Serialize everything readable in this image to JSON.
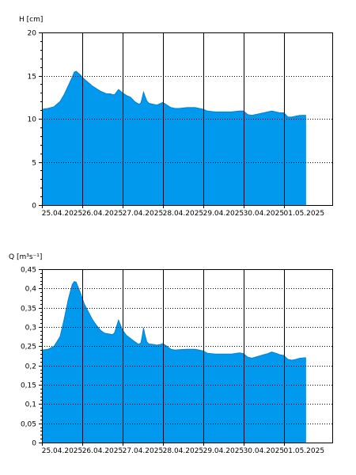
{
  "chart_data": [
    {
      "type": "area",
      "ylabel": "H [cm]",
      "ylim": [
        0,
        20
      ],
      "yticks": [
        0,
        5,
        10,
        15,
        20
      ],
      "ytick_labels": [
        "0",
        "5",
        "10",
        "15",
        "20"
      ],
      "xlim": [
        0,
        7.2
      ],
      "xticks": [
        0,
        1,
        2,
        3,
        4,
        5,
        6
      ],
      "xtick_labels": [
        "25.04.2025",
        "26.04.2025",
        "27.04.2025",
        "28.04.2025",
        "29.04.2025",
        "30.04.2025",
        "01.05.2025"
      ],
      "grid": true,
      "fill_color": "#0099ee",
      "series": [
        {
          "x": [
            0.0,
            0.15,
            0.3,
            0.45,
            0.55,
            0.65,
            0.75,
            0.8,
            0.85,
            0.95,
            1.05,
            1.15,
            1.25,
            1.35,
            1.45,
            1.55,
            1.6,
            1.7,
            1.75,
            1.8,
            1.9,
            2.0,
            2.1,
            2.2,
            2.3,
            2.4,
            2.45,
            2.48,
            2.52,
            2.55,
            2.6,
            2.65,
            2.75,
            2.85,
            2.95,
            3.0,
            3.1,
            3.2,
            3.3,
            3.4,
            3.6,
            3.8,
            3.9,
            4.0,
            4.1,
            4.3,
            4.5,
            4.7,
            4.9,
            5.0,
            5.1,
            5.2,
            5.4,
            5.5,
            5.6,
            5.7,
            5.8,
            5.9,
            6.0,
            6.1,
            6.2,
            6.3,
            6.4,
            6.5,
            6.55
          ],
          "y": [
            11.1,
            11.2,
            11.4,
            12.0,
            12.8,
            13.8,
            14.8,
            15.4,
            15.5,
            15.1,
            14.6,
            14.2,
            13.8,
            13.5,
            13.2,
            13.0,
            12.9,
            12.9,
            12.8,
            12.8,
            13.4,
            13.0,
            12.7,
            12.5,
            12.0,
            11.7,
            11.8,
            12.3,
            13.1,
            12.7,
            12.1,
            11.8,
            11.7,
            11.6,
            11.8,
            11.9,
            11.6,
            11.3,
            11.2,
            11.2,
            11.3,
            11.3,
            11.2,
            11.1,
            10.9,
            10.8,
            10.8,
            10.8,
            10.9,
            10.9,
            10.5,
            10.4,
            10.6,
            10.7,
            10.8,
            10.9,
            10.8,
            10.7,
            10.7,
            10.2,
            10.2,
            10.3,
            10.4,
            10.4,
            10.4
          ]
        }
      ]
    },
    {
      "type": "area",
      "ylabel": "Q [m³s⁻¹]",
      "ylim": [
        0,
        0.45
      ],
      "yticks": [
        0,
        0.05,
        0.1,
        0.15,
        0.2,
        0.25,
        0.3,
        0.35,
        0.4,
        0.45
      ],
      "ytick_labels": [
        "0",
        "0,05",
        "0,1",
        "0,15",
        "0,2",
        "0,25",
        "0,3",
        "0,35",
        "0,4",
        "0,45"
      ],
      "xlim": [
        0,
        7.2
      ],
      "xticks": [
        0,
        1,
        2,
        3,
        4,
        5,
        6
      ],
      "xtick_labels": [
        "25.04.2025",
        "26.04.2025",
        "27.04.2025",
        "28.04.2025",
        "29.04.2025",
        "30.04.2025",
        "01.05.2025"
      ],
      "grid": true,
      "fill_color": "#0099ee",
      "series": [
        {
          "x": [
            0.0,
            0.15,
            0.3,
            0.45,
            0.55,
            0.65,
            0.75,
            0.8,
            0.85,
            0.95,
            1.05,
            1.15,
            1.25,
            1.35,
            1.45,
            1.55,
            1.6,
            1.7,
            1.75,
            1.8,
            1.9,
            2.0,
            2.1,
            2.2,
            2.3,
            2.4,
            2.45,
            2.48,
            2.52,
            2.55,
            2.6,
            2.65,
            2.75,
            2.85,
            2.95,
            3.0,
            3.1,
            3.2,
            3.3,
            3.4,
            3.6,
            3.8,
            3.9,
            4.0,
            4.1,
            4.3,
            4.5,
            4.7,
            4.9,
            5.0,
            5.1,
            5.2,
            5.4,
            5.5,
            5.6,
            5.7,
            5.8,
            5.9,
            6.0,
            6.1,
            6.2,
            6.3,
            6.4,
            6.5,
            6.55
          ],
          "y": [
            0.24,
            0.242,
            0.25,
            0.275,
            0.32,
            0.37,
            0.41,
            0.418,
            0.416,
            0.39,
            0.36,
            0.34,
            0.32,
            0.305,
            0.292,
            0.284,
            0.283,
            0.281,
            0.28,
            0.285,
            0.318,
            0.292,
            0.278,
            0.27,
            0.262,
            0.255,
            0.258,
            0.272,
            0.298,
            0.282,
            0.262,
            0.256,
            0.255,
            0.253,
            0.255,
            0.257,
            0.25,
            0.242,
            0.24,
            0.241,
            0.242,
            0.242,
            0.24,
            0.238,
            0.232,
            0.23,
            0.23,
            0.23,
            0.233,
            0.231,
            0.222,
            0.219,
            0.225,
            0.228,
            0.231,
            0.235,
            0.232,
            0.228,
            0.226,
            0.216,
            0.214,
            0.216,
            0.219,
            0.22,
            0.22
          ]
        }
      ]
    }
  ]
}
